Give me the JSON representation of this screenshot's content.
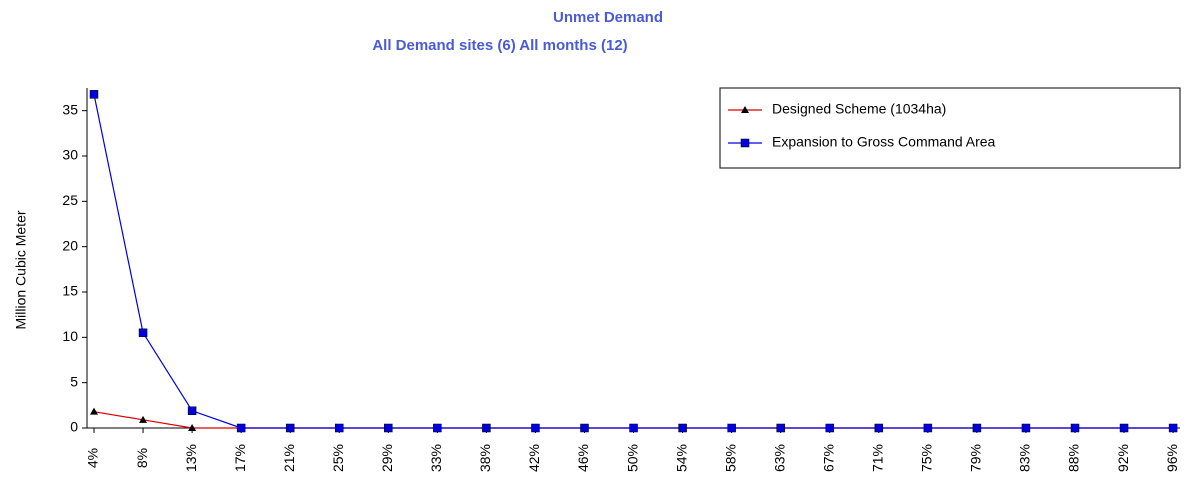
{
  "chart_data": {
    "type": "line",
    "title": "Unmet Demand",
    "subtitle": "All Demand sites (6) All months (12)",
    "y_label": "Million Cubic Meter",
    "categories": [
      "4%",
      "8%",
      "13%",
      "17%",
      "21%",
      "25%",
      "29%",
      "33%",
      "38%",
      "42%",
      "46%",
      "50%",
      "54%",
      "58%",
      "63%",
      "67%",
      "71%",
      "75%",
      "79%",
      "83%",
      "88%",
      "92%",
      "96%"
    ],
    "series": [
      {
        "name": "Designed Scheme (1034ha)",
        "color": "#dd0000",
        "marker": "triangle",
        "values": [
          1.8,
          0.9,
          0,
          0,
          0,
          0,
          0,
          0,
          0,
          0,
          0,
          0,
          0,
          0,
          0,
          0,
          0,
          0,
          0,
          0,
          0,
          0,
          0
        ]
      },
      {
        "name": "Expansion to Gross Command Area",
        "color": "#0000dd",
        "marker": "square",
        "values": [
          36.8,
          10.5,
          1.9,
          0,
          0,
          0,
          0,
          0,
          0,
          0,
          0,
          0,
          0,
          0,
          0,
          0,
          0,
          0,
          0,
          0,
          0,
          0,
          0
        ]
      }
    ],
    "ylim": [
      0,
      37.5
    ],
    "yticks": [
      0,
      5,
      10,
      15,
      20,
      25,
      30,
      35
    ],
    "legend": "top-right"
  }
}
